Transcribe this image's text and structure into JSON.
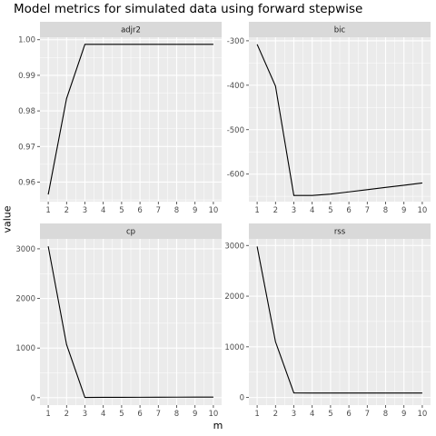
{
  "chart_data": {
    "type": "line",
    "title": "Model metrics for simulated data using forward stepwise",
    "xlabel": "m",
    "ylabel": "value",
    "grid": true,
    "x": [
      1,
      2,
      3,
      4,
      5,
      6,
      7,
      8,
      9,
      10
    ],
    "panels": [
      {
        "name": "adjr2",
        "values": [
          0.9565,
          0.9835,
          0.9987,
          0.9987,
          0.9987,
          0.9987,
          0.9987,
          0.9987,
          0.9987,
          0.9987
        ],
        "ylim": [
          0.9545,
          1.0007
        ],
        "yticks": [
          0.96,
          0.97,
          0.98,
          0.99,
          1.0
        ],
        "ytick_labels": [
          "0.96",
          "0.97",
          "0.98",
          "0.99",
          "1.00"
        ]
      },
      {
        "name": "bic",
        "values": [
          -308,
          -402,
          -648,
          -648,
          -645,
          -640,
          -635,
          -630,
          -625,
          -620
        ],
        "ylim": [
          -662,
          -292
        ],
        "yticks": [
          -600,
          -500,
          -400,
          -300
        ],
        "ytick_labels": [
          "-600",
          "-500",
          "-400",
          "-300"
        ]
      },
      {
        "name": "cp",
        "values": [
          3050,
          1070,
          5,
          6,
          7,
          8,
          9,
          10,
          11,
          12
        ],
        "ylim": [
          -150,
          3200
        ],
        "yticks": [
          0,
          1000,
          2000,
          3000
        ],
        "ytick_labels": [
          "0",
          "1000",
          "2000",
          "3000"
        ]
      },
      {
        "name": "rss",
        "values": [
          2980,
          1100,
          90,
          89,
          89,
          89,
          89,
          88,
          88,
          88
        ],
        "ylim": [
          -150,
          3130
        ],
        "yticks": [
          0,
          1000,
          2000,
          3000
        ],
        "ytick_labels": [
          "0",
          "1000",
          "2000",
          "3000"
        ]
      }
    ]
  },
  "colors": {
    "panel_bg": "#ebebeb",
    "strip_bg": "#d9d9d9",
    "grid": "#ffffff",
    "line": "#000000"
  }
}
